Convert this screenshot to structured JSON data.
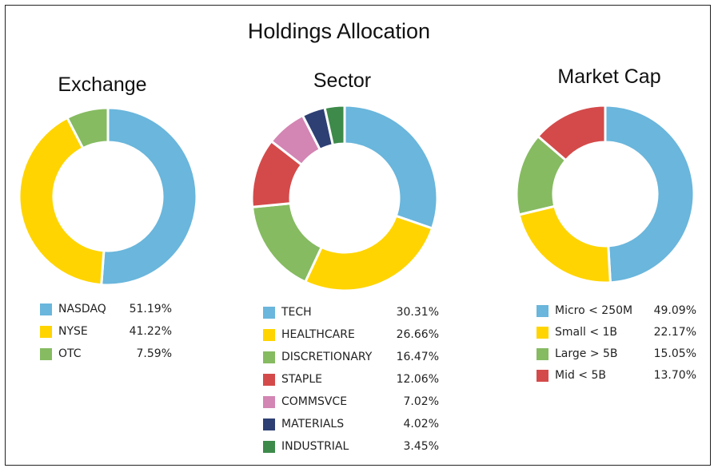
{
  "title": "Holdings Allocation",
  "chart_data": [
    {
      "type": "pie",
      "title": "Exchange",
      "categories": [
        "NASDAQ",
        "NYSE",
        "OTC"
      ],
      "values": [
        51.19,
        41.22,
        7.59
      ],
      "value_labels": [
        "51.19%",
        "41.22%",
        "7.59%"
      ],
      "colors": [
        "#6ab6dc",
        "#ffd400",
        "#86bb61"
      ],
      "legend": "bottom"
    },
    {
      "type": "pie",
      "title": "Sector",
      "categories": [
        "TECH",
        "HEALTHCARE",
        "DISCRETIONARY",
        "STAPLE",
        "COMMSVCE",
        "MATERIALS",
        "INDUSTRIAL"
      ],
      "values": [
        30.31,
        26.66,
        16.47,
        12.06,
        7.02,
        4.02,
        3.45
      ],
      "value_labels": [
        "30.31%",
        "26.66%",
        "16.47%",
        "12.06%",
        "7.02%",
        "4.02%",
        "3.45%"
      ],
      "colors": [
        "#6ab6dc",
        "#ffd400",
        "#86bb61",
        "#d44a4a",
        "#d385b3",
        "#2e3f74",
        "#3d8a4a"
      ],
      "legend": "bottom"
    },
    {
      "type": "pie",
      "title": "Market Cap",
      "categories": [
        "Micro < 250M",
        "Small < 1B",
        "Large > 5B",
        "Mid < 5B"
      ],
      "values": [
        49.09,
        22.17,
        15.05,
        13.7
      ],
      "value_labels": [
        "49.09%",
        "22.17%",
        "15.05%",
        "13.70%"
      ],
      "colors": [
        "#6ab6dc",
        "#ffd400",
        "#86bb61",
        "#d44a4a"
      ],
      "legend": "bottom"
    }
  ]
}
